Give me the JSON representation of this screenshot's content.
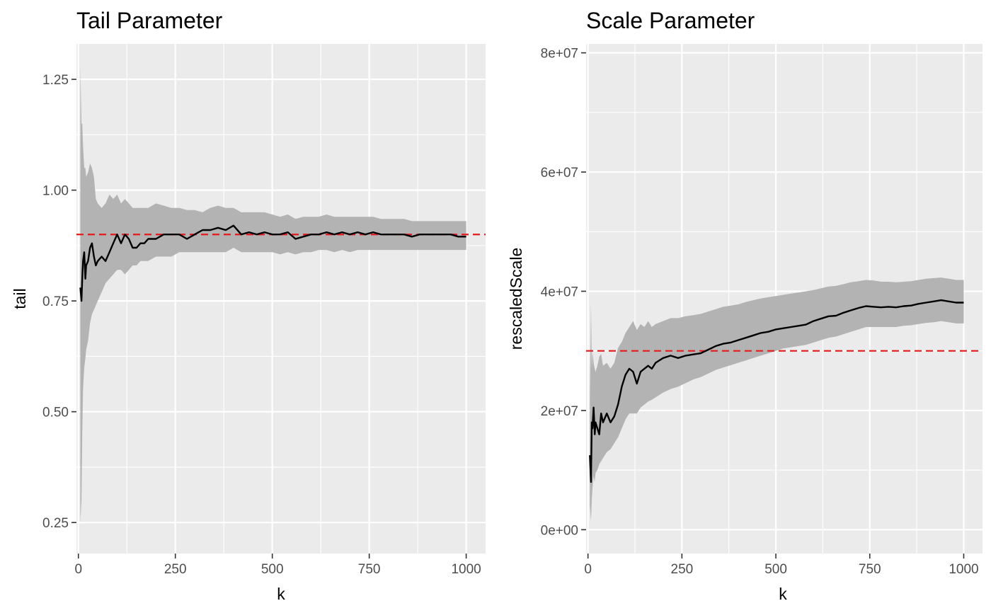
{
  "chart_data": [
    {
      "type": "line",
      "title": "Tail Parameter",
      "xlabel": "k",
      "ylabel": "tail",
      "xlim": [
        -5,
        1050
      ],
      "ylim": [
        0.18,
        1.33
      ],
      "xticks": [
        0,
        250,
        500,
        750,
        1000
      ],
      "xtick_labels": [
        "0",
        "250",
        "500",
        "750",
        "1000"
      ],
      "yticks": [
        0.25,
        0.5,
        0.75,
        1.0,
        1.25
      ],
      "ytick_labels": [
        "0.25",
        "0.50",
        "0.75",
        "1.00",
        "1.25"
      ],
      "grid": true,
      "reference_line": {
        "y": 0.9,
        "color": "#e41a1c",
        "style": "dashed"
      },
      "series": [
        {
          "x": [
            5,
            8,
            10,
            12,
            15,
            18,
            20,
            25,
            30,
            35,
            40,
            45,
            50,
            60,
            70,
            80,
            90,
            100,
            110,
            120,
            130,
            140,
            150,
            160,
            170,
            180,
            200,
            220,
            240,
            260,
            280,
            300,
            320,
            340,
            360,
            380,
            400,
            420,
            440,
            460,
            480,
            500,
            520,
            540,
            560,
            580,
            600,
            620,
            640,
            660,
            680,
            700,
            720,
            740,
            760,
            780,
            800,
            820,
            840,
            860,
            880,
            900,
            920,
            940,
            960,
            980,
            1000
          ],
          "y": [
            0.78,
            0.75,
            0.8,
            0.84,
            0.86,
            0.8,
            0.83,
            0.84,
            0.87,
            0.88,
            0.85,
            0.83,
            0.84,
            0.85,
            0.84,
            0.86,
            0.88,
            0.9,
            0.88,
            0.9,
            0.89,
            0.87,
            0.87,
            0.88,
            0.88,
            0.89,
            0.89,
            0.9,
            0.9,
            0.9,
            0.89,
            0.9,
            0.91,
            0.91,
            0.915,
            0.91,
            0.92,
            0.9,
            0.905,
            0.9,
            0.905,
            0.9,
            0.9,
            0.905,
            0.89,
            0.895,
            0.9,
            0.9,
            0.905,
            0.9,
            0.905,
            0.9,
            0.905,
            0.9,
            0.905,
            0.9,
            0.9,
            0.9,
            0.9,
            0.895,
            0.9,
            0.9,
            0.9,
            0.9,
            0.9,
            0.895,
            0.895
          ],
          "ci_lower": [
            0.25,
            0.3,
            0.45,
            0.55,
            0.6,
            0.62,
            0.64,
            0.66,
            0.7,
            0.72,
            0.73,
            0.74,
            0.75,
            0.77,
            0.79,
            0.8,
            0.81,
            0.82,
            0.82,
            0.81,
            0.82,
            0.83,
            0.83,
            0.84,
            0.84,
            0.84,
            0.85,
            0.85,
            0.85,
            0.86,
            0.86,
            0.86,
            0.86,
            0.86,
            0.86,
            0.86,
            0.87,
            0.86,
            0.86,
            0.86,
            0.86,
            0.86,
            0.855,
            0.86,
            0.855,
            0.86,
            0.86,
            0.865,
            0.865,
            0.86,
            0.865,
            0.86,
            0.865,
            0.865,
            0.865,
            0.865,
            0.865,
            0.865,
            0.865,
            0.865,
            0.865,
            0.865,
            0.865,
            0.865,
            0.865,
            0.865,
            0.865
          ],
          "ci_upper": [
            1.28,
            1.15,
            1.15,
            1.1,
            1.05,
            1.05,
            1.03,
            1.04,
            1.06,
            1.05,
            1.03,
            0.98,
            0.97,
            0.96,
            0.97,
            0.99,
            0.98,
            0.99,
            0.97,
            0.98,
            0.97,
            0.96,
            0.96,
            0.96,
            0.96,
            0.96,
            0.97,
            0.965,
            0.96,
            0.96,
            0.955,
            0.955,
            0.95,
            0.96,
            0.965,
            0.96,
            0.96,
            0.95,
            0.95,
            0.95,
            0.95,
            0.945,
            0.94,
            0.945,
            0.935,
            0.94,
            0.94,
            0.94,
            0.945,
            0.94,
            0.94,
            0.94,
            0.94,
            0.94,
            0.94,
            0.935,
            0.935,
            0.935,
            0.935,
            0.93,
            0.93,
            0.93,
            0.93,
            0.93,
            0.93,
            0.93,
            0.93
          ]
        }
      ]
    },
    {
      "type": "line",
      "title": "Scale Parameter",
      "xlabel": "k",
      "ylabel": "rescaledScale",
      "xlim": [
        -5,
        1050
      ],
      "ylim": [
        -4000000,
        81500000
      ],
      "xticks": [
        0,
        250,
        500,
        750,
        1000
      ],
      "xtick_labels": [
        "0",
        "250",
        "500",
        "750",
        "1000"
      ],
      "yticks": [
        0,
        20000000,
        40000000,
        60000000,
        80000000
      ],
      "ytick_labels": [
        "0e+00",
        "2e+07",
        "4e+07",
        "6e+07",
        "8e+07"
      ],
      "grid": true,
      "reference_line": {
        "y": 30000000,
        "color": "#e41a1c",
        "style": "dashed"
      },
      "series": [
        {
          "x": [
            5,
            8,
            10,
            12,
            15,
            18,
            20,
            25,
            30,
            35,
            40,
            50,
            60,
            70,
            80,
            90,
            100,
            110,
            120,
            130,
            140,
            150,
            160,
            170,
            180,
            200,
            220,
            240,
            260,
            280,
            300,
            320,
            340,
            360,
            380,
            400,
            420,
            440,
            460,
            480,
            500,
            520,
            540,
            560,
            580,
            600,
            620,
            640,
            660,
            680,
            700,
            720,
            740,
            760,
            780,
            800,
            820,
            840,
            860,
            880,
            900,
            920,
            940,
            960,
            980,
            1000
          ],
          "y": [
            12500000,
            8000000,
            18000000,
            17000000,
            20500000,
            16000000,
            18000000,
            17000000,
            16000000,
            19500000,
            18000000,
            19500000,
            18000000,
            19000000,
            21000000,
            24000000,
            26000000,
            27000000,
            26500000,
            24500000,
            26500000,
            27000000,
            27500000,
            27000000,
            28000000,
            28800000,
            29200000,
            28800000,
            29200000,
            29400000,
            29600000,
            30200000,
            30800000,
            31200000,
            31400000,
            31800000,
            32200000,
            32600000,
            33000000,
            33200000,
            33600000,
            33800000,
            34000000,
            34200000,
            34400000,
            35000000,
            35400000,
            35800000,
            35900000,
            36400000,
            36800000,
            37200000,
            37500000,
            37400000,
            37300000,
            37400000,
            37300000,
            37500000,
            37600000,
            37900000,
            38100000,
            38300000,
            38500000,
            38300000,
            38100000,
            38100000
          ],
          "ci_lower": [
            4000000,
            1500000,
            5000000,
            7000000,
            9000000,
            8000000,
            9500000,
            10000000,
            11000000,
            11500000,
            12000000,
            13000000,
            13500000,
            14500000,
            15500000,
            17000000,
            18500000,
            19500000,
            19500000,
            19500000,
            20500000,
            21000000,
            21500000,
            21800000,
            22200000,
            23000000,
            23600000,
            24000000,
            24600000,
            25200000,
            25600000,
            26200000,
            26800000,
            27200000,
            27600000,
            28000000,
            28400000,
            28800000,
            29200000,
            29600000,
            30000000,
            30400000,
            30600000,
            30800000,
            31000000,
            31400000,
            31800000,
            32200000,
            32400000,
            32800000,
            33200000,
            33600000,
            34000000,
            34000000,
            34000000,
            34000000,
            34000000,
            34200000,
            34300000,
            34500000,
            34700000,
            34800000,
            35000000,
            34800000,
            34600000,
            34600000
          ],
          "ci_upper": [
            22000000,
            38000000,
            27000000,
            30000000,
            28000000,
            27000000,
            26500000,
            27500000,
            29000000,
            29500000,
            27500000,
            28000000,
            27000000,
            28000000,
            30500000,
            31500000,
            33000000,
            34000000,
            35000000,
            33500000,
            34500000,
            34000000,
            35000000,
            34000000,
            34500000,
            35000000,
            35500000,
            35500000,
            35800000,
            36000000,
            36200000,
            36600000,
            37000000,
            37400000,
            37600000,
            37800000,
            38200000,
            38500000,
            38800000,
            39000000,
            39200000,
            39400000,
            39600000,
            39800000,
            40000000,
            40200000,
            40500000,
            40800000,
            40900000,
            41200000,
            41500000,
            41700000,
            41900000,
            41800000,
            41600000,
            41600000,
            41500000,
            41600000,
            41700000,
            41900000,
            42100000,
            42200000,
            42300000,
            42100000,
            41900000,
            41900000
          ]
        }
      ]
    }
  ]
}
